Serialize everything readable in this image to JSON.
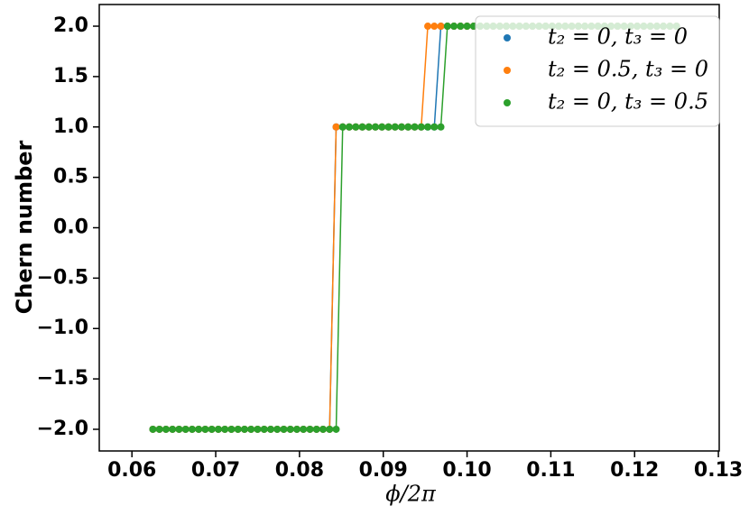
{
  "chart_data": {
    "type": "line",
    "xlabel": "ϕ/2π",
    "ylabel": "Chern number",
    "x": [
      0.0625,
      0.06328125,
      0.0640625,
      0.06484375,
      0.065625,
      0.06640625,
      0.0671875,
      0.06796875,
      0.06875,
      0.06953125,
      0.0703125,
      0.07109375,
      0.071875,
      0.07265625,
      0.0734375,
      0.07421875,
      0.075,
      0.07578125,
      0.0765625,
      0.07734375,
      0.078125,
      0.07890625,
      0.0796875,
      0.08046875,
      0.08125,
      0.08203125,
      0.0828125,
      0.08359375,
      0.084375,
      0.08515625,
      0.0859375,
      0.08671875,
      0.0875,
      0.08828125,
      0.0890625,
      0.08984375,
      0.090625,
      0.09140625,
      0.0921875,
      0.09296875,
      0.09375,
      0.09453125,
      0.0953125,
      0.09609375,
      0.096875,
      0.09765625,
      0.0984375,
      0.09921875,
      0.1,
      0.10078125,
      0.1015625,
      0.10234375,
      0.103125,
      0.10390625,
      0.1046875,
      0.10546875,
      0.10625,
      0.10703125,
      0.1078125,
      0.10859375,
      0.109375,
      0.11015625,
      0.1109375,
      0.11171875,
      0.1125,
      0.11328125,
      0.1140625,
      0.11484375,
      0.115625,
      0.11640625,
      0.1171875,
      0.11796875,
      0.11875,
      0.11953125,
      0.1203125,
      0.12109375,
      0.121875,
      0.12265625,
      0.1234375,
      0.12421875,
      0.125
    ],
    "series": [
      {
        "name": "t₂ = 0, t₃ = 0",
        "color": "#1f77b4",
        "values": [
          -2,
          -2,
          -2,
          -2,
          -2,
          -2,
          -2,
          -2,
          -2,
          -2,
          -2,
          -2,
          -2,
          -2,
          -2,
          -2,
          -2,
          -2,
          -2,
          -2,
          -2,
          -2,
          -2,
          -2,
          -2,
          -2,
          -2,
          -2,
          1,
          1,
          1,
          1,
          1,
          1,
          1,
          1,
          1,
          1,
          1,
          1,
          1,
          1,
          1,
          1,
          2,
          2,
          2,
          2,
          2,
          2,
          2,
          2,
          2,
          2,
          2,
          2,
          2,
          2,
          2,
          2,
          2,
          2,
          2,
          2,
          2,
          2,
          2,
          2,
          2,
          2,
          2,
          2,
          2,
          2,
          2,
          2,
          2,
          2,
          2,
          2,
          2
        ]
      },
      {
        "name": "t₂ = 0.5, t₃ = 0",
        "color": "#ff7f0e",
        "values": [
          -2,
          -2,
          -2,
          -2,
          -2,
          -2,
          -2,
          -2,
          -2,
          -2,
          -2,
          -2,
          -2,
          -2,
          -2,
          -2,
          -2,
          -2,
          -2,
          -2,
          -2,
          -2,
          -2,
          -2,
          -2,
          -2,
          -2,
          -2,
          1,
          1,
          1,
          1,
          1,
          1,
          1,
          1,
          1,
          1,
          1,
          1,
          1,
          1,
          2,
          2,
          2,
          2,
          2,
          2,
          2,
          2,
          2,
          2,
          2,
          2,
          2,
          2,
          2,
          2,
          2,
          2,
          2,
          2,
          2,
          2,
          2,
          2,
          2,
          2,
          2,
          2,
          2,
          2,
          2,
          2,
          2,
          2,
          2,
          2,
          2,
          2,
          2
        ]
      },
      {
        "name": "t₂ = 0, t₃ = 0.5",
        "color": "#2ca02c",
        "values": [
          -2,
          -2,
          -2,
          -2,
          -2,
          -2,
          -2,
          -2,
          -2,
          -2,
          -2,
          -2,
          -2,
          -2,
          -2,
          -2,
          -2,
          -2,
          -2,
          -2,
          -2,
          -2,
          -2,
          -2,
          -2,
          -2,
          -2,
          -2,
          -2,
          1,
          1,
          1,
          1,
          1,
          1,
          1,
          1,
          1,
          1,
          1,
          1,
          1,
          1,
          1,
          1,
          2,
          2,
          2,
          2,
          2,
          2,
          2,
          2,
          2,
          2,
          2,
          2,
          2,
          2,
          2,
          2,
          2,
          2,
          2,
          2,
          2,
          2,
          2,
          2,
          2,
          2,
          2,
          2,
          2,
          2,
          2,
          2,
          2,
          2,
          2,
          2
        ]
      }
    ],
    "xlim": [
      0.0561,
      0.1301
    ],
    "ylim": [
      -2.215,
      2.215
    ],
    "xticks": [
      0.06,
      0.07,
      0.08,
      0.09,
      {
        "value": 0.1,
        "label": "0.10"
      },
      0.11,
      0.12,
      0.13
    ],
    "yticks": [
      {
        "value": -2,
        "label": "−2.0"
      },
      {
        "value": -1.5,
        "label": "−1.5"
      },
      {
        "value": -1,
        "label": "−1.0"
      },
      {
        "value": -0.5,
        "label": "−0.5"
      },
      {
        "value": 0,
        "label": "0.0"
      },
      {
        "value": 0.5,
        "label": "0.5"
      },
      {
        "value": 1,
        "label": "1.0"
      },
      {
        "value": 1.5,
        "label": "1.5"
      },
      {
        "value": 2,
        "label": "2.0"
      }
    ],
    "markers": true,
    "grid": false,
    "legend": "upper right"
  }
}
